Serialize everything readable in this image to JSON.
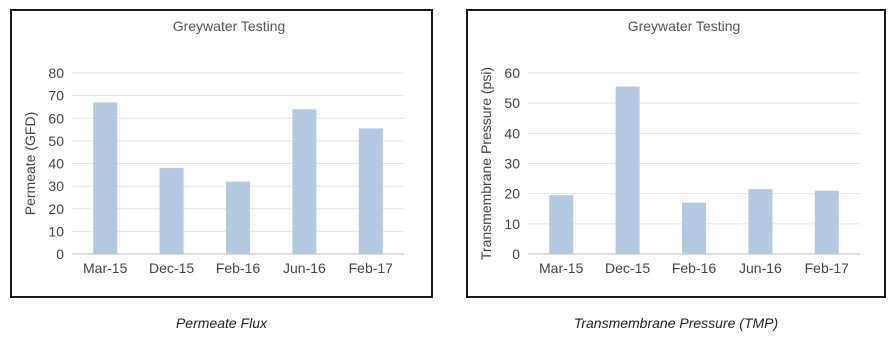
{
  "chart_data": [
    {
      "type": "bar",
      "title": "Greywater Testing",
      "ylabel": "Permeate (GFD)",
      "xlabel": "",
      "categories": [
        "Mar-15",
        "Dec-15",
        "Feb-16",
        "Jun-16",
        "Feb-17"
      ],
      "values": [
        67,
        38,
        32,
        64,
        55.5
      ],
      "ylim": [
        0,
        80
      ],
      "yticks": [
        0,
        10,
        20,
        30,
        40,
        50,
        60,
        70,
        80
      ],
      "grid": true,
      "bar_color": "#b3c9e2",
      "caption": "Permeate Flux"
    },
    {
      "type": "bar",
      "title": "Greywater Testing",
      "ylabel": "Transmembrane Pressure (psi)",
      "xlabel": "",
      "categories": [
        "Mar-15",
        "Dec-15",
        "Feb-16",
        "Jun-16",
        "Feb-17"
      ],
      "values": [
        19.5,
        55.5,
        17,
        21.5,
        21
      ],
      "ylim": [
        0,
        60
      ],
      "yticks": [
        0,
        10,
        20,
        30,
        40,
        50,
        60
      ],
      "grid": true,
      "bar_color": "#b3c9e2",
      "caption": "Transmembrane Pressure (TMP)"
    }
  ]
}
